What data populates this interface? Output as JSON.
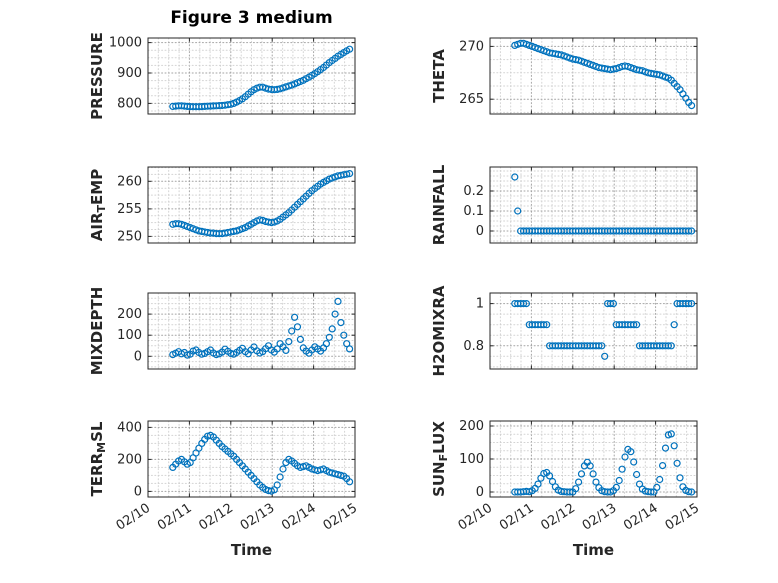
{
  "title": "Figure 3 medium",
  "chart_data": {
    "type": "scatter",
    "marker": "circle-open",
    "marker_color": "#0072BD",
    "grid": "dotted major and minor",
    "xlabel": "Time",
    "xlim": [
      0,
      5
    ],
    "xticks": [
      0,
      1,
      2,
      3,
      4,
      5
    ],
    "xtick_labels": [
      "02/10",
      "02/11",
      "02/12",
      "02/13",
      "02/14",
      "02/15"
    ],
    "x_unit": "days since 02/10",
    "x": [
      0.6,
      0.67,
      0.74,
      0.81,
      0.88,
      0.95,
      1.02,
      1.09,
      1.16,
      1.23,
      1.3,
      1.37,
      1.44,
      1.51,
      1.58,
      1.65,
      1.72,
      1.79,
      1.86,
      1.93,
      2.0,
      2.07,
      2.14,
      2.21,
      2.28,
      2.35,
      2.42,
      2.49,
      2.56,
      2.63,
      2.7,
      2.77,
      2.84,
      2.91,
      2.98,
      3.05,
      3.12,
      3.19,
      3.26,
      3.33,
      3.4,
      3.47,
      3.54,
      3.61,
      3.68,
      3.75,
      3.82,
      3.89,
      3.96,
      4.03,
      4.1,
      4.17,
      4.24,
      4.31,
      4.38,
      4.45,
      4.52,
      4.59,
      4.66,
      4.73,
      4.8,
      4.87
    ],
    "subplots": [
      {
        "id": "pressure",
        "ylabel": "PRESSURE",
        "ylabel_parts": [
          {
            "text": "PRESSURE"
          }
        ],
        "yticks": [
          800,
          900,
          1000
        ],
        "ylim": [
          765,
          1015
        ],
        "values": [
          790,
          791,
          792,
          792,
          791,
          790,
          789.5,
          789,
          789,
          789,
          789.5,
          790,
          790.5,
          791,
          791.5,
          792,
          792.5,
          793,
          794,
          795.5,
          797,
          800,
          804,
          809,
          815,
          822,
          830,
          838,
          845,
          850,
          853,
          853,
          850,
          847,
          845.5,
          845,
          846,
          848,
          851,
          854,
          857,
          860,
          864,
          868,
          872,
          876,
          881,
          886,
          892,
          898,
          904,
          911,
          918,
          926,
          934,
          941,
          948,
          955,
          961,
          967,
          973,
          978
        ]
      },
      {
        "id": "theta",
        "ylabel": "THETA",
        "ylabel_parts": [
          {
            "text": "THETA"
          }
        ],
        "yticks": [
          265,
          270
        ],
        "ylim": [
          263.6,
          270.8
        ],
        "values": [
          270.1,
          270.2,
          270.3,
          270.3,
          270.2,
          270.1,
          270.0,
          269.9,
          269.8,
          269.7,
          269.6,
          269.5,
          269.4,
          269.35,
          269.3,
          269.25,
          269.2,
          269.1,
          269.0,
          268.9,
          268.8,
          268.75,
          268.7,
          268.6,
          268.5,
          268.4,
          268.3,
          268.2,
          268.1,
          268.0,
          267.95,
          267.9,
          267.85,
          267.8,
          267.85,
          267.9,
          268.0,
          268.1,
          268.15,
          268.1,
          268.0,
          267.9,
          267.8,
          267.75,
          267.7,
          267.6,
          267.5,
          267.45,
          267.4,
          267.35,
          267.3,
          267.2,
          267.1,
          267.0,
          266.8,
          266.5,
          266.2,
          265.9,
          265.5,
          265.1,
          264.7,
          264.4
        ]
      },
      {
        "id": "air_temp",
        "ylabel": "AIR_TEMP",
        "ylabel_parts": [
          {
            "text": "AIR"
          },
          {
            "text": "T",
            "sub": true
          },
          {
            "text": "EMP"
          }
        ],
        "yticks": [
          250,
          255,
          260
        ],
        "ylim": [
          248.8,
          262.6
        ],
        "values": [
          252.2,
          252.3,
          252.3,
          252.2,
          252.0,
          251.8,
          251.6,
          251.4,
          251.2,
          251.0,
          250.9,
          250.8,
          250.7,
          250.6,
          250.6,
          250.5,
          250.5,
          250.5,
          250.6,
          250.7,
          250.8,
          250.9,
          251.0,
          251.2,
          251.4,
          251.6,
          251.9,
          252.2,
          252.5,
          252.8,
          253.0,
          252.9,
          252.7,
          252.6,
          252.5,
          252.6,
          252.8,
          253.1,
          253.5,
          253.9,
          254.3,
          254.8,
          255.3,
          255.8,
          256.3,
          256.8,
          257.3,
          257.8,
          258.3,
          258.7,
          259.1,
          259.5,
          259.8,
          260.1,
          260.4,
          260.6,
          260.8,
          261.0,
          261.1,
          261.2,
          261.3,
          261.4
        ]
      },
      {
        "id": "rainfall",
        "ylabel": "RAINFALL",
        "ylabel_parts": [
          {
            "text": "RAINFALL"
          }
        ],
        "yticks": [
          0,
          0.1,
          0.2
        ],
        "ylim": [
          -0.06,
          0.32
        ],
        "values": [
          0.27,
          0.1,
          0,
          0,
          0,
          0,
          0,
          0,
          0,
          0,
          0,
          0,
          0,
          0,
          0,
          0,
          0,
          0,
          0,
          0,
          0,
          0,
          0,
          0,
          0,
          0,
          0,
          0,
          0,
          0,
          0,
          0,
          0,
          0,
          0,
          0,
          0,
          0,
          0,
          0,
          0,
          0,
          0,
          0,
          0,
          0,
          0,
          0,
          0,
          0,
          0,
          0,
          0,
          0,
          0,
          0,
          0,
          0,
          0,
          0,
          0,
          0
        ]
      },
      {
        "id": "mixdepth",
        "ylabel": "MIXDEPTH",
        "ylabel_parts": [
          {
            "text": "MIXDEPTH"
          }
        ],
        "yticks": [
          0,
          100,
          200
        ],
        "ylim": [
          -60,
          300
        ],
        "values": [
          8,
          15,
          22,
          12,
          18,
          6,
          10,
          25,
          30,
          18,
          10,
          14,
          22,
          30,
          16,
          8,
          12,
          20,
          34,
          24,
          14,
          10,
          18,
          28,
          38,
          22,
          12,
          30,
          44,
          26,
          16,
          22,
          36,
          50,
          30,
          20,
          35,
          60,
          45,
          28,
          70,
          120,
          185,
          140,
          80,
          40,
          25,
          15,
          30,
          45,
          35,
          25,
          40,
          60,
          90,
          130,
          200,
          260,
          160,
          100,
          60,
          35
        ]
      },
      {
        "id": "h2omixra",
        "ylabel": "H2OMIXRA",
        "ylabel_parts": [
          {
            "text": "H2OMIXRA"
          }
        ],
        "yticks": [
          0.8,
          1
        ],
        "ylim": [
          0.69,
          1.05
        ],
        "values": [
          1,
          1,
          1,
          1,
          1,
          0.9,
          0.9,
          0.9,
          0.9,
          0.9,
          0.9,
          0.9,
          0.8,
          0.8,
          0.8,
          0.8,
          0.8,
          0.8,
          0.8,
          0.8,
          0.8,
          0.8,
          0.8,
          0.8,
          0.8,
          0.8,
          0.8,
          0.8,
          0.8,
          0.8,
          0.8,
          0.75,
          1,
          1,
          1,
          0.9,
          0.9,
          0.9,
          0.9,
          0.9,
          0.9,
          0.9,
          0.9,
          0.8,
          0.8,
          0.8,
          0.8,
          0.8,
          0.8,
          0.8,
          0.8,
          0.8,
          0.8,
          0.8,
          0.8,
          0.9,
          1,
          1,
          1,
          1,
          1,
          1
        ]
      },
      {
        "id": "terr_msl",
        "ylabel": "TERR_MSL",
        "ylabel_parts": [
          {
            "text": "TERR"
          },
          {
            "text": "M",
            "sub": true
          },
          {
            "text": "SL"
          }
        ],
        "yticks": [
          0,
          200,
          400
        ],
        "ylim": [
          -35,
          440
        ],
        "values": [
          150,
          170,
          190,
          200,
          185,
          170,
          180,
          210,
          240,
          270,
          300,
          325,
          345,
          350,
          340,
          320,
          300,
          280,
          265,
          250,
          235,
          220,
          200,
          180,
          160,
          140,
          120,
          100,
          80,
          60,
          40,
          25,
          12,
          5,
          2,
          10,
          40,
          90,
          140,
          180,
          200,
          190,
          175,
          160,
          150,
          155,
          160,
          150,
          140,
          135,
          130,
          135,
          140,
          130,
          120,
          115,
          110,
          105,
          100,
          95,
          80,
          60
        ]
      },
      {
        "id": "sun_flux",
        "ylabel": "SUN_FLUX",
        "ylabel_parts": [
          {
            "text": "SUN"
          },
          {
            "text": "F",
            "sub": true
          },
          {
            "text": "LUX"
          }
        ],
        "yticks": [
          0,
          100,
          200
        ],
        "ylim": [
          -15,
          215
        ],
        "values": [
          0,
          0,
          0,
          1,
          2,
          1,
          4,
          11,
          24,
          42,
          56,
          59,
          49,
          32,
          16,
          6,
          2,
          1,
          0,
          0,
          0,
          10,
          30,
          55,
          79,
          90,
          79,
          55,
          30,
          13,
          4,
          1,
          0,
          0,
          4,
          14,
          35,
          69,
          106,
          129,
          122,
          91,
          53,
          24,
          9,
          3,
          1,
          0,
          0,
          14,
          38,
          80,
          133,
          173,
          176,
          140,
          87,
          43,
          16,
          5,
          1,
          0
        ]
      }
    ]
  }
}
